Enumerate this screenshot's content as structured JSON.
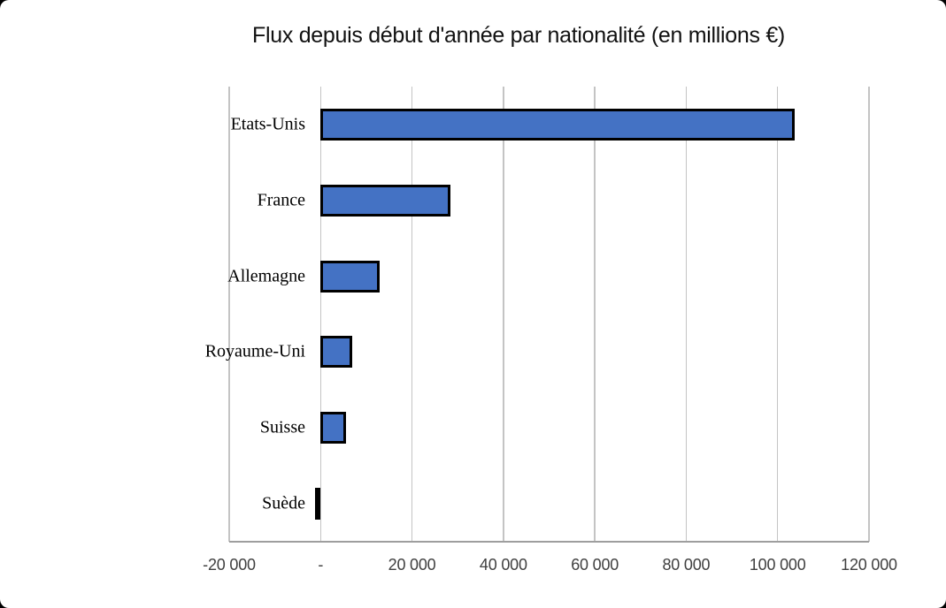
{
  "chart_data": {
    "type": "bar",
    "orientation": "horizontal",
    "title": "Flux depuis début d'année par nationalité (en millions €)",
    "categories": [
      "Etats-Unis",
      "France",
      "Allemagne",
      "Royaume-Uni",
      "Suisse",
      "Suède"
    ],
    "values": [
      103800,
      28500,
      13000,
      7000,
      5600,
      -200
    ],
    "xlabel": "",
    "ylabel": "",
    "xlim": [
      -20000,
      120000
    ],
    "x_tick_step": 20000,
    "x_tick_labels": [
      "-20 000",
      "-",
      "20 000",
      "40 000",
      "60 000",
      "80 000",
      "100 000",
      "120 000"
    ],
    "grid": "vertical-only",
    "legend": "none"
  },
  "colors": {
    "page_background": "#000000",
    "card_background": "#ffffff",
    "bar_fill": "#4472C4",
    "bar_border": "#000000",
    "gridline": "#c4c4c4",
    "axis_line": "#9e9e9e",
    "title_text": "#111111",
    "category_text": "#000000",
    "tick_text": "#3f3f3f"
  }
}
